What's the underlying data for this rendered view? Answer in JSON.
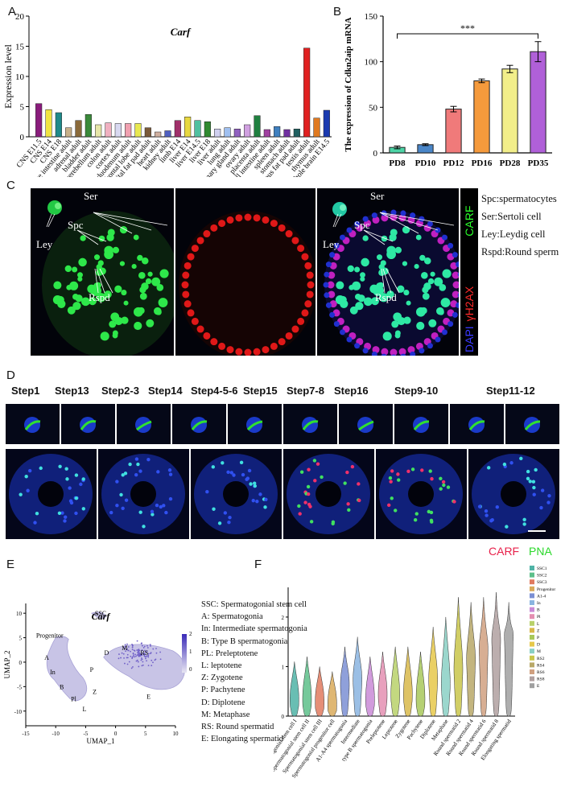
{
  "panels": {
    "A": "A",
    "B": "B",
    "C": "C",
    "D": "D",
    "E": "E",
    "F": "F"
  },
  "chart_data": [
    {
      "type": "bar",
      "title": "Carf",
      "ylabel": "Expression level",
      "ylim": [
        0,
        20
      ],
      "yticks": [
        0,
        5,
        10,
        15,
        20
      ],
      "categories": [
        "CNS E11.5",
        "CNS E14",
        "CNS E18",
        "Large intestine adult",
        "adrenal adult",
        "bladder adult",
        "cerebellum adult",
        "colon adult",
        "cortex adult",
        "duodenum adult",
        "frontal lobe adult",
        "genital fat pad adult",
        "heart adult",
        "kidney adult",
        "limb E14",
        "liver E14",
        "liver E14.5",
        "liver E18",
        "liver adult",
        "lung adult",
        "mammary gland adult",
        "ovary adult",
        "placenta adult",
        "small intestine adult",
        "spleen adult",
        "stomach adult",
        "subcutaneous fat pad adult",
        "testis adult",
        "thymus adult",
        "whole brain E14.5"
      ],
      "values": [
        5.5,
        4.5,
        4.0,
        1.5,
        2.7,
        3.7,
        2.0,
        2.3,
        2.2,
        2.2,
        2.2,
        1.5,
        0.8,
        1.0,
        2.7,
        3.3,
        2.7,
        2.5,
        1.3,
        1.5,
        1.3,
        2.0,
        3.5,
        1.2,
        1.7,
        1.2,
        1.3,
        14.7,
        3.1,
        4.4
      ],
      "colors": [
        "#8a1c7c",
        "#f0e442",
        "#1f8a8a",
        "#c7b08a",
        "#8a6a3a",
        "#3a8a3a",
        "#e6e6a8",
        "#f0b0c0",
        "#d8d8f0",
        "#f0a0b0",
        "#e8e850",
        "#7a5a3a",
        "#d0b0a0",
        "#5060c0",
        "#a0306a",
        "#e8d840",
        "#50c0a0",
        "#308a30",
        "#d0d0f0",
        "#a0c0f0",
        "#9060c0",
        "#d0a0e0",
        "#208040",
        "#a040a0",
        "#4080c0",
        "#7030a0",
        "#206060",
        "#e02020",
        "#e07a20",
        "#1a3ab0"
      ]
    },
    {
      "type": "bar",
      "ylabel": "The expression of Cdkn2aip mRNA",
      "ylim": [
        0,
        150
      ],
      "yticks": [
        0,
        50,
        100,
        150
      ],
      "categories": [
        "PD8",
        "PD10",
        "PD12",
        "PD16",
        "PD28",
        "PD35"
      ],
      "values": [
        6,
        9,
        48,
        79,
        92,
        111
      ],
      "errors": [
        1.5,
        1,
        3,
        2,
        4,
        11
      ],
      "colors": [
        "#4dd4a6",
        "#4a86c8",
        "#f07a7a",
        "#f59a3c",
        "#f2ee8a",
        "#b060d8"
      ],
      "significance": "***"
    },
    {
      "type": "scatter",
      "title": "Carf",
      "xlabel": "UMAP_1",
      "ylabel": "UMAP_2",
      "xlim": [
        -15,
        10
      ],
      "ylim": [
        -13,
        12
      ],
      "xticks": [
        -15,
        -10,
        -5,
        0,
        5,
        10
      ],
      "yticks": [
        -10,
        -5,
        0,
        5,
        10
      ],
      "colorbar_ticks": [
        0,
        1,
        2
      ],
      "cluster_labels": [
        "SSC",
        "Progenitor",
        "A",
        "In",
        "B",
        "Pl",
        "L",
        "Z",
        "P",
        "D",
        "M",
        "RS",
        "E"
      ]
    },
    {
      "type": "violin",
      "ylabel": "Expression level",
      "yticks": [
        0,
        1,
        2
      ],
      "categories": [
        "Spermatogonial stem cell I",
        "Spermatogonial stem cell II",
        "Spermatogonial stem cell III",
        "Spermatogonial progenitor cell",
        "A1-A4 spermatogonia",
        "Intermediate",
        "type B spermatogonia",
        "Preleptotene",
        "Leptotene",
        "Zygotene",
        "Pachytene",
        "Diplotene",
        "Metaphase",
        "Round spermatid 2",
        "Round spermatid 4",
        "Round spermatid 6",
        "Round spermatid 8",
        "Elongating spermatid"
      ],
      "medians": [
        0.4,
        0.4,
        0.35,
        0.3,
        0.7,
        0.8,
        0.4,
        0.5,
        0.5,
        0.5,
        0.4,
        0.8,
        0.7,
        1.0,
        1.2,
        1.4,
        1.6,
        1.7
      ],
      "maxima": [
        1.1,
        1.2,
        1.0,
        0.9,
        1.4,
        1.6,
        1.2,
        1.3,
        1.4,
        1.4,
        1.3,
        1.8,
        2.0,
        2.4,
        2.3,
        2.4,
        2.5,
        2.3
      ],
      "legend": [
        "SSC1",
        "SSC2",
        "SSC3",
        "Progenitor",
        "A1-4",
        "In",
        "B",
        "Pl",
        "L",
        "Z",
        "P",
        "D",
        "M",
        "RS2",
        "RS4",
        "RS6",
        "RS8",
        "E"
      ],
      "colors": [
        "#4fb3a6",
        "#5dbf8a",
        "#e07a5f",
        "#d9aa5a",
        "#7b8fd4",
        "#8ab4e0",
        "#c98ad6",
        "#e48fb2",
        "#b8d16a",
        "#d8b84a",
        "#a8c85a",
        "#e6c84a",
        "#8ad0c4",
        "#c9c64a",
        "#b8a868",
        "#d0a080",
        "#b0a0a0",
        "#a0a0a0"
      ]
    }
  ],
  "panelC": {
    "labels": {
      "ser": "Ser",
      "spc": "Spc",
      "ley": "Ley",
      "rspd": "Rspd"
    },
    "side": {
      "dapi": "DAPI",
      "h2ax": "γH2AX",
      "carf": "CARF"
    },
    "legend": [
      "Spc:spermatocytes",
      "Ser:Sertoli cell",
      "Ley:Leydig cell",
      "Rspd:Round sperm"
    ]
  },
  "panelD": {
    "steps": [
      "Step1",
      "Step13",
      "Step2-3",
      "Step14",
      "Step4-5-6",
      "Step15",
      "Step7-8",
      "Step16",
      "Step9-10",
      "Step11-12"
    ],
    "carf": "CARF",
    "pna": "PNA"
  },
  "panelE": {
    "legend": [
      "SSC: Spermatogonial stem cell",
      "A: Spermatogonia",
      "In: Intermediate spermatogonia",
      "B: Type B spermatogonia",
      "PL: Preleptotene",
      "L: leptotene",
      "Z: Zygotene",
      "P: Pachytene",
      "D: Diplotene",
      "M: Metaphase",
      "RS: Round spermatid",
      "E:   Elongating spermatid"
    ]
  }
}
